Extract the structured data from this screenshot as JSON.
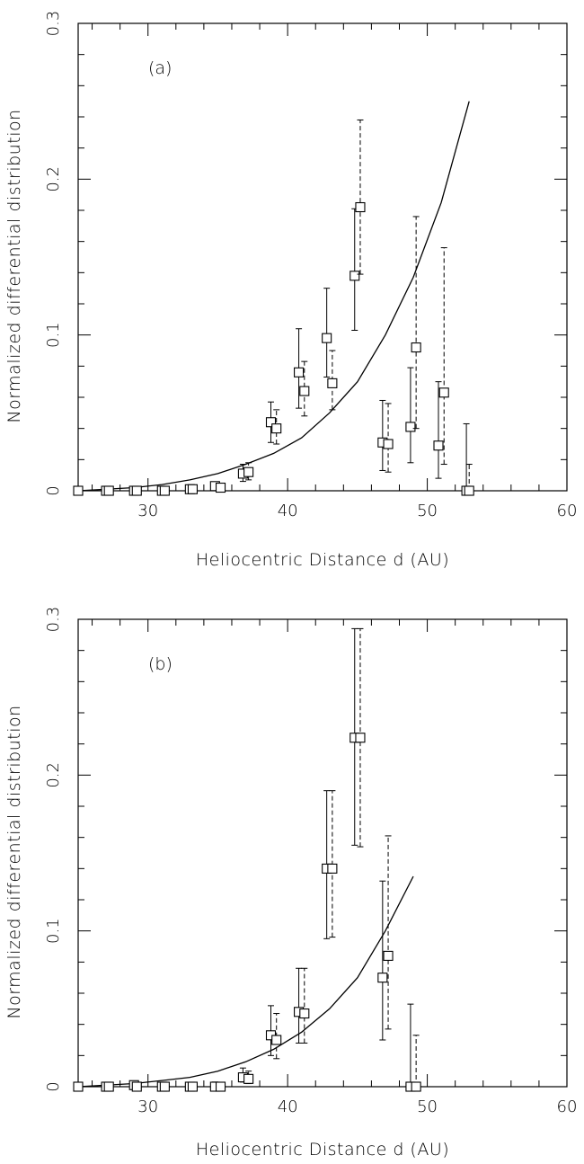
{
  "chart_data": [
    {
      "type": "scatter",
      "panel_label": "(a)",
      "xlabel": "Heliocentric Distance d (AU)",
      "ylabel": "Normalized differential distribution",
      "xlim": [
        25,
        60
      ],
      "ylim": [
        0,
        0.3
      ],
      "xticks": [
        30,
        40,
        50,
        60
      ],
      "yticks": [
        0,
        0.1,
        0.2,
        0.3
      ],
      "ytick_labels": [
        "0",
        "0.1",
        "0.2",
        "0.3"
      ],
      "xtick_labels": [
        "30",
        "40",
        "50",
        "60"
      ],
      "model_curve": {
        "x": [
          25,
          27,
          29,
          31,
          33,
          35,
          37,
          39,
          41,
          43,
          45,
          47,
          49,
          51,
          53
        ],
        "y": [
          0.0,
          0.001,
          0.002,
          0.004,
          0.007,
          0.011,
          0.017,
          0.024,
          0.034,
          0.05,
          0.07,
          0.1,
          0.137,
          0.185,
          0.25
        ]
      },
      "series": [
        {
          "style": "solid",
          "points": [
            {
              "x": 25.0,
              "y": 0.0,
              "err_low": 0.0,
              "err_high": 0.0
            },
            {
              "x": 27.0,
              "y": 0.0,
              "err_low": 0.0,
              "err_high": 0.0
            },
            {
              "x": 29.0,
              "y": 0.0,
              "err_low": 0.0,
              "err_high": 0.0
            },
            {
              "x": 31.0,
              "y": 0.0,
              "err_low": 0.0,
              "err_high": 0.0
            },
            {
              "x": 33.0,
              "y": 0.001,
              "err_low": 0.001,
              "err_high": 0.001
            },
            {
              "x": 34.8,
              "y": 0.003,
              "err_low": 0.002,
              "err_high": 0.004
            },
            {
              "x": 36.8,
              "y": 0.011,
              "err_low": 0.006,
              "err_high": 0.017
            },
            {
              "x": 38.8,
              "y": 0.044,
              "err_low": 0.031,
              "err_high": 0.057
            },
            {
              "x": 40.8,
              "y": 0.076,
              "err_low": 0.053,
              "err_high": 0.104
            },
            {
              "x": 42.8,
              "y": 0.098,
              "err_low": 0.073,
              "err_high": 0.13
            },
            {
              "x": 44.8,
              "y": 0.138,
              "err_low": 0.103,
              "err_high": 0.181
            },
            {
              "x": 46.8,
              "y": 0.031,
              "err_low": 0.013,
              "err_high": 0.058
            },
            {
              "x": 48.8,
              "y": 0.041,
              "err_low": 0.018,
              "err_high": 0.079
            },
            {
              "x": 50.8,
              "y": 0.029,
              "err_low": 0.008,
              "err_high": 0.07
            },
            {
              "x": 52.8,
              "y": 0.0,
              "err_low": 0.0,
              "err_high": 0.043
            }
          ]
        },
        {
          "style": "dashed",
          "points": [
            {
              "x": 27.2,
              "y": 0.0,
              "err_low": 0.0,
              "err_high": 0.0
            },
            {
              "x": 29.2,
              "y": 0.0,
              "err_low": 0.0,
              "err_high": 0.0
            },
            {
              "x": 31.2,
              "y": 0.0,
              "err_low": 0.0,
              "err_high": 0.0
            },
            {
              "x": 33.2,
              "y": 0.001,
              "err_low": 0.001,
              "err_high": 0.001
            },
            {
              "x": 35.2,
              "y": 0.002,
              "err_low": 0.001,
              "err_high": 0.003
            },
            {
              "x": 37.2,
              "y": 0.012,
              "err_low": 0.007,
              "err_high": 0.018
            },
            {
              "x": 39.2,
              "y": 0.04,
              "err_low": 0.03,
              "err_high": 0.052
            },
            {
              "x": 41.2,
              "y": 0.064,
              "err_low": 0.048,
              "err_high": 0.083
            },
            {
              "x": 43.2,
              "y": 0.069,
              "err_low": 0.052,
              "err_high": 0.09
            },
            {
              "x": 45.2,
              "y": 0.182,
              "err_low": 0.139,
              "err_high": 0.238
            },
            {
              "x": 47.2,
              "y": 0.03,
              "err_low": 0.012,
              "err_high": 0.056
            },
            {
              "x": 49.2,
              "y": 0.092,
              "err_low": 0.04,
              "err_high": 0.176
            },
            {
              "x": 51.2,
              "y": 0.063,
              "err_low": 0.017,
              "err_high": 0.156
            },
            {
              "x": 53.0,
              "y": 0.0,
              "err_low": 0.0,
              "err_high": 0.017
            }
          ]
        }
      ]
    },
    {
      "type": "scatter",
      "panel_label": "(b)",
      "xlabel": "Heliocentric Distance d (AU)",
      "ylabel": "Normalized differential distribution",
      "xlim": [
        25,
        60
      ],
      "ylim": [
        0,
        0.3
      ],
      "xticks": [
        30,
        40,
        50,
        60
      ],
      "yticks": [
        0,
        0.1,
        0.2,
        0.3
      ],
      "ytick_labels": [
        "0",
        "0.1",
        "0.2",
        "0.3"
      ],
      "xtick_labels": [
        "30",
        "40",
        "50",
        "60"
      ],
      "model_curve": {
        "x": [
          25,
          27,
          29,
          31,
          33,
          35,
          37,
          39,
          41,
          43,
          45,
          47,
          49
        ],
        "y": [
          0.0,
          0.001,
          0.002,
          0.004,
          0.006,
          0.01,
          0.016,
          0.024,
          0.035,
          0.05,
          0.07,
          0.1,
          0.135
        ]
      },
      "series": [
        {
          "style": "solid",
          "points": [
            {
              "x": 25.0,
              "y": 0.0,
              "err_low": 0.0,
              "err_high": 0.0
            },
            {
              "x": 27.0,
              "y": 0.0,
              "err_low": 0.0,
              "err_high": 0.0
            },
            {
              "x": 29.0,
              "y": 0.001,
              "err_low": 0.0,
              "err_high": 0.001
            },
            {
              "x": 31.0,
              "y": 0.0,
              "err_low": 0.0,
              "err_high": 0.0
            },
            {
              "x": 33.0,
              "y": 0.0,
              "err_low": 0.0,
              "err_high": 0.0
            },
            {
              "x": 34.8,
              "y": 0.0,
              "err_low": 0.0,
              "err_high": 0.003
            },
            {
              "x": 36.8,
              "y": 0.006,
              "err_low": 0.003,
              "err_high": 0.012
            },
            {
              "x": 38.8,
              "y": 0.033,
              "err_low": 0.02,
              "err_high": 0.052
            },
            {
              "x": 40.8,
              "y": 0.048,
              "err_low": 0.028,
              "err_high": 0.076
            },
            {
              "x": 42.8,
              "y": 0.14,
              "err_low": 0.095,
              "err_high": 0.19
            },
            {
              "x": 44.8,
              "y": 0.224,
              "err_low": 0.155,
              "err_high": 0.294
            },
            {
              "x": 46.8,
              "y": 0.07,
              "err_low": 0.03,
              "err_high": 0.132
            },
            {
              "x": 48.8,
              "y": 0.0,
              "err_low": 0.0,
              "err_high": 0.053
            }
          ]
        },
        {
          "style": "dashed",
          "points": [
            {
              "x": 27.2,
              "y": 0.0,
              "err_low": 0.0,
              "err_high": 0.0
            },
            {
              "x": 29.2,
              "y": 0.0,
              "err_low": 0.0,
              "err_high": 0.0
            },
            {
              "x": 31.2,
              "y": 0.0,
              "err_low": 0.0,
              "err_high": 0.0
            },
            {
              "x": 33.2,
              "y": 0.0,
              "err_low": 0.0,
              "err_high": 0.0
            },
            {
              "x": 35.2,
              "y": 0.0,
              "err_low": 0.0,
              "err_high": 0.0
            },
            {
              "x": 37.2,
              "y": 0.005,
              "err_low": 0.002,
              "err_high": 0.01
            },
            {
              "x": 39.2,
              "y": 0.03,
              "err_low": 0.018,
              "err_high": 0.047
            },
            {
              "x": 41.2,
              "y": 0.047,
              "err_low": 0.028,
              "err_high": 0.076
            },
            {
              "x": 43.2,
              "y": 0.14,
              "err_low": 0.096,
              "err_high": 0.19
            },
            {
              "x": 45.2,
              "y": 0.224,
              "err_low": 0.154,
              "err_high": 0.294
            },
            {
              "x": 47.2,
              "y": 0.084,
              "err_low": 0.037,
              "err_high": 0.161
            },
            {
              "x": 49.2,
              "y": 0.0,
              "err_low": 0.0,
              "err_high": 0.033
            }
          ]
        }
      ]
    }
  ]
}
